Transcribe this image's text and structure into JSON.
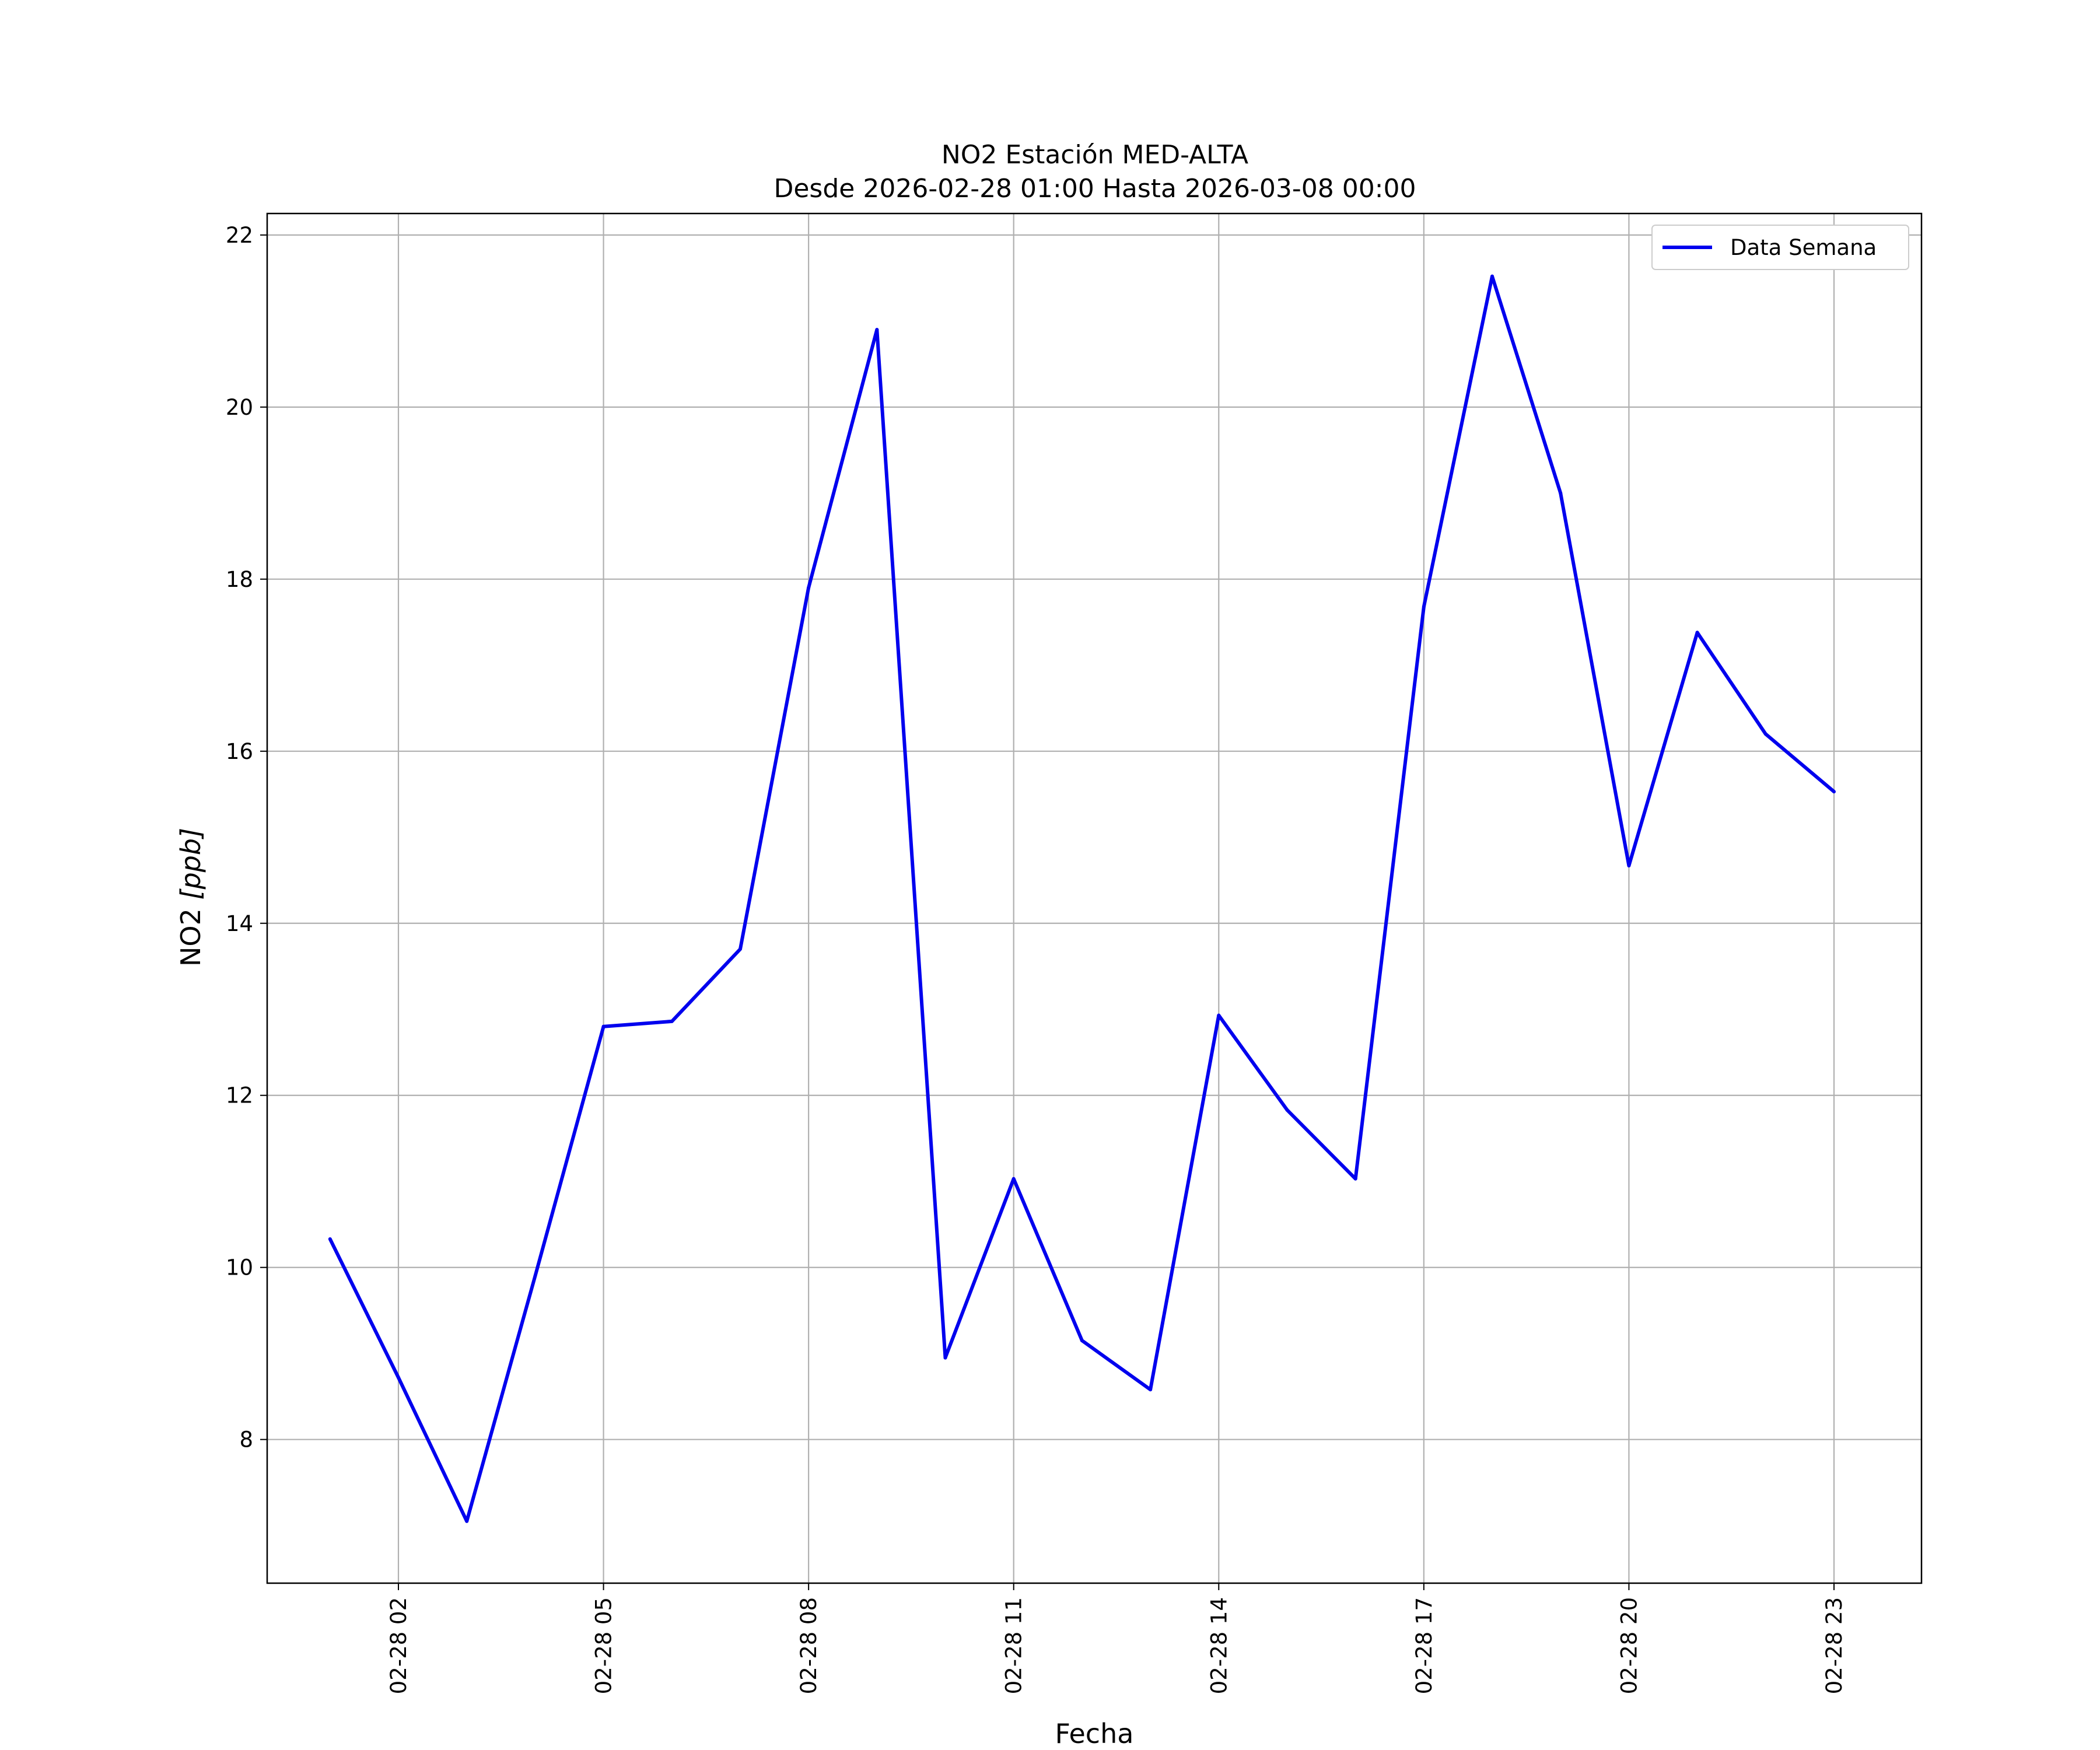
{
  "chart_data": {
    "type": "line",
    "title": "NO2 Estación MED-ALTA",
    "subtitle": "Desde 2026-02-28 01:00 Hasta 2026-03-08 00:00",
    "xlabel": "Fecha",
    "ylabel_prefix": "NO2 ",
    "ylabel_unit": "[ppb]",
    "x_ticks": [
      "02-28 02",
      "02-28 05",
      "02-28 08",
      "02-28 11",
      "02-28 14",
      "02-28 17",
      "02-28 20",
      "02-28 23"
    ],
    "x_tick_hours": [
      2,
      5,
      8,
      11,
      14,
      17,
      20,
      23
    ],
    "xlim_hours": [
      0.08,
      24.28
    ],
    "y_ticks": [
      8,
      10,
      12,
      14,
      16,
      18,
      20,
      22
    ],
    "ylim": [
      6.33,
      22.25
    ],
    "grid": true,
    "legend_position": "top-right",
    "series": [
      {
        "name": "Data Semana",
        "color": "#0000ee",
        "x_hours": [
          1,
          2,
          3,
          4,
          5,
          6,
          7,
          8,
          9,
          10,
          11,
          12,
          13,
          14,
          15,
          16,
          17,
          18,
          19,
          20,
          21,
          22,
          23
        ],
        "values": [
          10.33,
          8.72,
          7.05,
          9.9,
          12.8,
          12.86,
          13.7,
          17.9,
          20.9,
          8.95,
          11.03,
          9.15,
          8.58,
          12.93,
          11.83,
          11.03,
          17.68,
          21.52,
          19.0,
          14.67,
          17.38,
          16.2,
          15.53
        ]
      }
    ]
  }
}
